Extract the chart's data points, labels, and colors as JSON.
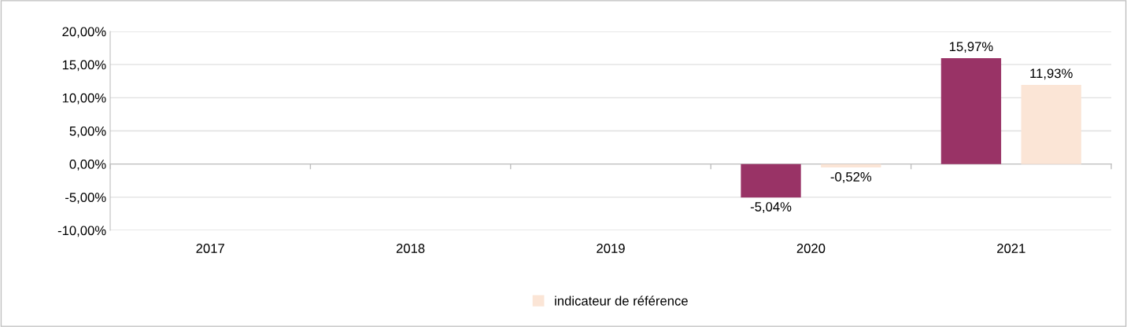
{
  "chart_data": {
    "type": "bar",
    "categories": [
      "2017",
      "2018",
      "2019",
      "2020",
      "2021"
    ],
    "series": [
      {
        "color": "#993366",
        "values": [
          null,
          null,
          null,
          -5.04,
          15.97
        ],
        "value_labels": [
          null,
          null,
          null,
          "-5,04%",
          "15,97%"
        ]
      },
      {
        "name": "indicateur de référence",
        "color": "#fbe5d6",
        "values": [
          null,
          null,
          null,
          -0.52,
          11.93
        ],
        "value_labels": [
          null,
          null,
          null,
          "-0,52%",
          "11,93%"
        ]
      }
    ],
    "ylim": [
      -10,
      20
    ],
    "yticks": [
      {
        "value": -10,
        "label": "-10,00%"
      },
      {
        "value": -5,
        "label": "-5,00%"
      },
      {
        "value": 0,
        "label": "0,00%"
      },
      {
        "value": 5,
        "label": "5,00%"
      },
      {
        "value": 10,
        "label": "10,00%"
      },
      {
        "value": 15,
        "label": "15,00%"
      },
      {
        "value": 20,
        "label": "20,00%"
      }
    ],
    "grid": "y",
    "legend": "bottom"
  }
}
